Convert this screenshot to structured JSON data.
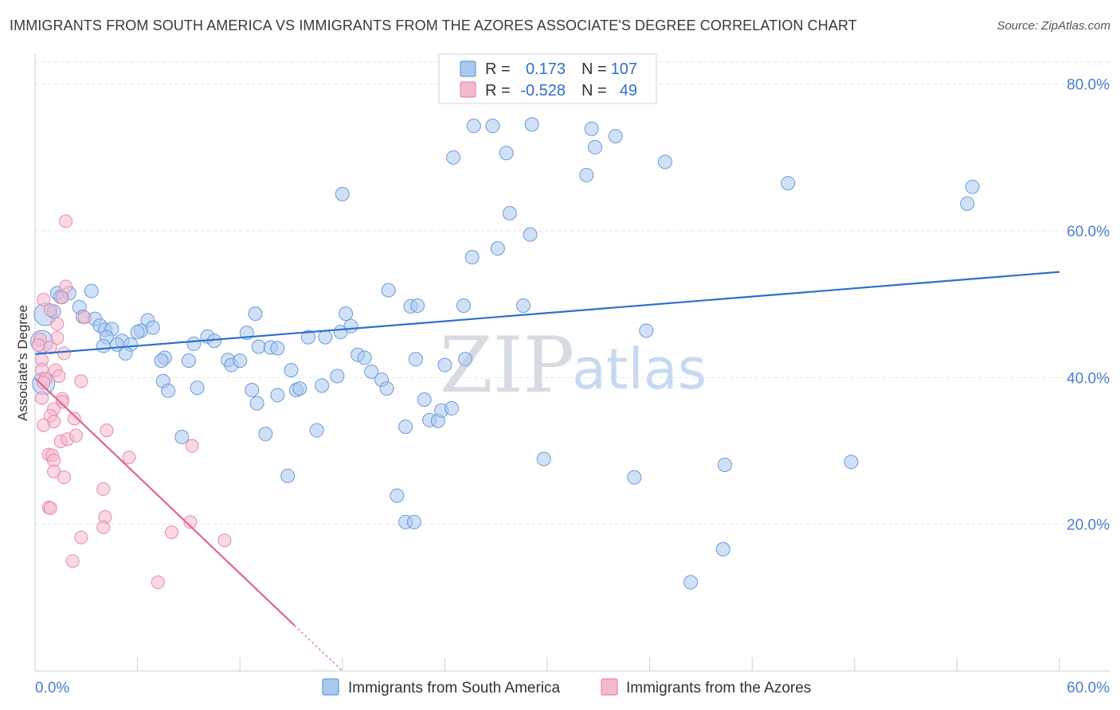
{
  "title": "IMMIGRANTS FROM SOUTH AMERICA VS IMMIGRANTS FROM THE AZORES ASSOCIATE'S DEGREE CORRELATION CHART",
  "source": "Source: ZipAtlas.com",
  "legend": {
    "r_label": "R =",
    "n_label": "N =",
    "blue": {
      "r": "0.173",
      "n": "107"
    },
    "pink": {
      "r": "-0.528",
      "n": "49"
    }
  },
  "watermark": {
    "zip": "ZIP",
    "atlas": "atlas"
  },
  "colors": {
    "blue_fill": "#a9c8f0",
    "blue_stroke": "#6b9ad8",
    "blue_line": "#2f6fd0",
    "pink_fill": "#f5b9cd",
    "pink_stroke": "#e58aa8",
    "pink_line": "#e0648f",
    "grid": "#dde3ea",
    "tick_text": "#4a7fd0"
  },
  "chart_data": {
    "type": "scatter",
    "title": "IMMIGRANTS FROM SOUTH AMERICA VS IMMIGRANTS FROM THE AZORES ASSOCIATE'S DEGREE CORRELATION CHART",
    "xlabel": "",
    "ylabel": "Associate's Degree",
    "xlim": [
      0,
      60
    ],
    "ylim": [
      0,
      83
    ],
    "x_tick_labels": [
      "0.0%",
      "60.0%"
    ],
    "y_ticks": [
      20,
      40,
      60,
      80
    ],
    "y_tick_labels": [
      "20.0%",
      "40.0%",
      "60.0%",
      "80.0%"
    ],
    "grid": "dashed horizontal",
    "legend_position": "top-center",
    "series": [
      {
        "name": "Immigrants from South America",
        "color": "#a9c8f0",
        "trend": {
          "x": [
            0,
            60
          ],
          "y": [
            43.2,
            54.4
          ]
        },
        "points": [
          [
            0.6,
            48.6
          ],
          [
            0.4,
            44.9
          ],
          [
            0.5,
            39.2
          ],
          [
            1.3,
            51.5
          ],
          [
            2.0,
            51.5
          ],
          [
            1.5,
            51.0
          ],
          [
            1.1,
            49.0
          ],
          [
            2.6,
            49.6
          ],
          [
            2.8,
            48.3
          ],
          [
            3.5,
            48.0
          ],
          [
            3.8,
            47.1
          ],
          [
            4.1,
            46.5
          ],
          [
            4.5,
            46.6
          ],
          [
            4.2,
            45.5
          ],
          [
            4.0,
            44.3
          ],
          [
            5.1,
            45.0
          ],
          [
            5.6,
            44.5
          ],
          [
            5.3,
            43.3
          ],
          [
            6.6,
            47.8
          ],
          [
            6.2,
            46.4
          ],
          [
            6.9,
            46.8
          ],
          [
            7.6,
            42.7
          ],
          [
            7.4,
            42.3
          ],
          [
            7.5,
            39.5
          ],
          [
            7.8,
            38.2
          ],
          [
            9.3,
            44.6
          ],
          [
            9.0,
            42.3
          ],
          [
            9.5,
            38.6
          ],
          [
            8.6,
            31.9
          ],
          [
            10.1,
            45.6
          ],
          [
            10.5,
            45.0
          ],
          [
            11.3,
            42.4
          ],
          [
            11.5,
            41.7
          ],
          [
            12.0,
            42.3
          ],
          [
            12.7,
            38.3
          ],
          [
            13.0,
            36.5
          ],
          [
            12.9,
            48.7
          ],
          [
            13.1,
            44.2
          ],
          [
            13.8,
            44.1
          ],
          [
            14.2,
            44.0
          ],
          [
            13.5,
            32.3
          ],
          [
            14.8,
            26.6
          ],
          [
            14.2,
            37.6
          ],
          [
            15.3,
            38.3
          ],
          [
            15.5,
            38.5
          ],
          [
            15.0,
            41.0
          ],
          [
            16.0,
            45.5
          ],
          [
            16.5,
            32.8
          ],
          [
            16.8,
            38.9
          ],
          [
            17.0,
            45.5
          ],
          [
            17.7,
            40.2
          ],
          [
            17.9,
            46.2
          ],
          [
            18.2,
            48.7
          ],
          [
            18.5,
            47.0
          ],
          [
            18.9,
            43.1
          ],
          [
            19.3,
            42.7
          ],
          [
            19.7,
            40.8
          ],
          [
            20.3,
            39.7
          ],
          [
            20.6,
            38.5
          ],
          [
            21.7,
            33.3
          ],
          [
            22.0,
            49.7
          ],
          [
            22.4,
            49.8
          ],
          [
            22.3,
            42.5
          ],
          [
            22.8,
            37.0
          ],
          [
            23.1,
            34.2
          ],
          [
            23.6,
            34.1
          ],
          [
            23.8,
            35.5
          ],
          [
            24.0,
            41.7
          ],
          [
            24.4,
            35.8
          ],
          [
            25.2,
            42.5
          ],
          [
            25.1,
            49.8
          ],
          [
            24.5,
            70.0
          ],
          [
            25.6,
            56.4
          ],
          [
            25.7,
            74.3
          ],
          [
            26.8,
            74.3
          ],
          [
            27.1,
            57.6
          ],
          [
            27.8,
            62.4
          ],
          [
            27.6,
            70.6
          ],
          [
            28.6,
            49.8
          ],
          [
            29.0,
            59.5
          ],
          [
            29.1,
            74.5
          ],
          [
            20.7,
            51.9
          ],
          [
            18.0,
            65.0
          ],
          [
            21.2,
            23.9
          ],
          [
            21.7,
            20.3
          ],
          [
            22.2,
            20.3
          ],
          [
            29.8,
            28.9
          ],
          [
            32.3,
            67.6
          ],
          [
            32.6,
            73.9
          ],
          [
            32.8,
            71.4
          ],
          [
            34.0,
            72.9
          ],
          [
            35.1,
            26.4
          ],
          [
            35.8,
            46.4
          ],
          [
            36.9,
            69.4
          ],
          [
            40.4,
            28.1
          ],
          [
            40.3,
            16.6
          ],
          [
            38.4,
            12.1
          ],
          [
            44.1,
            66.5
          ],
          [
            47.8,
            28.5
          ],
          [
            54.6,
            63.7
          ],
          [
            54.9,
            66.0
          ],
          [
            3.3,
            51.8
          ],
          [
            4.8,
            44.5
          ],
          [
            6.0,
            46.2
          ],
          [
            12.4,
            46.1
          ]
        ]
      },
      {
        "name": "Immigrants from the Azores",
        "color": "#f5b9cd",
        "trend": {
          "x": [
            0,
            15.2
          ],
          "y": [
            39.9,
            6.2
          ]
        },
        "points": [
          [
            0.3,
            45.2
          ],
          [
            0.2,
            44.4
          ],
          [
            0.4,
            42.4
          ],
          [
            0.4,
            41.1
          ],
          [
            0.6,
            39.8
          ],
          [
            0.5,
            39.3
          ],
          [
            0.4,
            37.2
          ],
          [
            0.5,
            50.6
          ],
          [
            0.9,
            49.2
          ],
          [
            1.6,
            50.9
          ],
          [
            1.8,
            52.4
          ],
          [
            1.3,
            47.3
          ],
          [
            0.9,
            44.1
          ],
          [
            1.3,
            45.4
          ],
          [
            1.7,
            43.3
          ],
          [
            1.2,
            41.0
          ],
          [
            2.7,
            39.5
          ],
          [
            1.6,
            37.1
          ],
          [
            1.6,
            36.7
          ],
          [
            1.1,
            35.7
          ],
          [
            0.9,
            34.8
          ],
          [
            1.1,
            34.0
          ],
          [
            0.5,
            33.5
          ],
          [
            2.3,
            34.4
          ],
          [
            1.5,
            31.3
          ],
          [
            1.9,
            31.6
          ],
          [
            2.4,
            32.1
          ],
          [
            0.8,
            29.5
          ],
          [
            1.0,
            29.4
          ],
          [
            1.1,
            28.7
          ],
          [
            1.1,
            27.2
          ],
          [
            1.7,
            26.4
          ],
          [
            0.8,
            22.3
          ],
          [
            0.9,
            22.2
          ],
          [
            2.2,
            15.0
          ],
          [
            2.7,
            18.2
          ],
          [
            4.2,
            32.8
          ],
          [
            4.0,
            24.8
          ],
          [
            4.1,
            21.0
          ],
          [
            4.0,
            19.6
          ],
          [
            5.5,
            29.1
          ],
          [
            9.2,
            30.7
          ],
          [
            9.1,
            20.3
          ],
          [
            8.0,
            18.9
          ],
          [
            11.1,
            17.8
          ],
          [
            7.2,
            12.1
          ],
          [
            1.8,
            61.3
          ],
          [
            2.9,
            48.2
          ],
          [
            1.4,
            40.2
          ]
        ]
      }
    ]
  },
  "bottom_legend": {
    "blue_label": "Immigrants from South America",
    "pink_label": "Immigrants from the Azores"
  }
}
